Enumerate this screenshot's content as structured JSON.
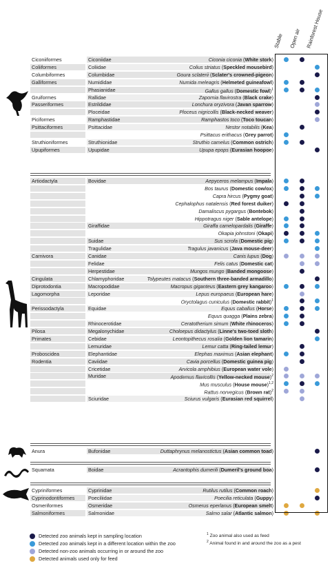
{
  "columns": [
    "Stable",
    "Open air",
    "Rainforest House"
  ],
  "colors": {
    "D": "#1a1a4a",
    "B": "#3a9ad9",
    "L": "#9fa7d8",
    "G": "#dfa840"
  },
  "groups": [
    {
      "name": "birds",
      "silhouette": "bird-silhouette-icon",
      "rows": [
        {
          "order": "Ciconiiformes",
          "family": "Ciconiidae",
          "latin": "Ciconia ciconia",
          "common": "White stork",
          "note": "",
          "dots": [
            "B",
            "D",
            ""
          ]
        },
        {
          "order": "Coliiformes",
          "family": "Coliidae",
          "latin": "Colius striatus",
          "common": "Speckled mousebird",
          "note": "",
          "dots": [
            "",
            "",
            "B"
          ]
        },
        {
          "order": "Columbiformes",
          "family": "Columbidae",
          "latin": "Goura sclaterii",
          "common": "Sclater's crowned-pigeon",
          "note": "",
          "dots": [
            "",
            "",
            "D"
          ]
        },
        {
          "order": "Galliformes",
          "family": "Numididae",
          "latin": "Numida meleagris",
          "common": "Helmeted guineafowl",
          "note": "",
          "dots": [
            "B",
            "D",
            ""
          ]
        },
        {
          "order": "",
          "family": "Phasianidae",
          "latin": "Gallus gallus",
          "common": "Domestic fowl",
          "note": "1",
          "dots": [
            "B",
            "D",
            "B"
          ]
        },
        {
          "order": "Gruiformes",
          "family": "Rallidae",
          "latin": "Zapornia flavirostra",
          "common": "Black crake",
          "note": "",
          "dots": [
            "",
            "",
            "D"
          ]
        },
        {
          "order": "Passeriformes",
          "family": "Estrildidae",
          "latin": "Lonchura oryzivora",
          "common": "Javan sparrow",
          "note": "",
          "dots": [
            "",
            "",
            "L"
          ]
        },
        {
          "order": "",
          "family": "Ploceidae",
          "latin": "Ploceus nigricollis",
          "common": "Black-necked weaver",
          "note": "",
          "dots": [
            "",
            "",
            "D"
          ]
        },
        {
          "order": "Piciformes",
          "family": "Ramphastidae",
          "latin": "Ramphastos toco",
          "common": "Toco toucan",
          "note": "",
          "dots": [
            "",
            "",
            "L"
          ]
        },
        {
          "order": "Psittaciformes",
          "family": "Psittacidae",
          "latin": "Nestor notabilis",
          "common": "Kea",
          "note": "",
          "dots": [
            "",
            "D",
            ""
          ]
        },
        {
          "order": "",
          "family": "",
          "latin": "Psittacus erithacus",
          "common": "Grey parrot",
          "note": "",
          "dots": [
            "B",
            "",
            ""
          ]
        },
        {
          "order": "Struthioniformes",
          "family": "Struthionidae",
          "latin": "Struthio camelus",
          "common": "Common ostrich",
          "note": "",
          "dots": [
            "B",
            "D",
            ""
          ]
        },
        {
          "order": "Upupiformes",
          "family": "Upupidae",
          "latin": "Upupa epops",
          "common": "Eurasian hoopoe",
          "note": "",
          "dots": [
            "",
            "",
            "D"
          ]
        }
      ]
    },
    {
      "name": "mammals",
      "silhouette": "giraffe-silhouette-icon",
      "rows": [
        {
          "order": "Artiodactyla",
          "family": "Bovidae",
          "latin": "Aepyceros melampus",
          "common": "Impala",
          "note": "",
          "dots": [
            "B",
            "D",
            ""
          ]
        },
        {
          "order": "",
          "family": "",
          "latin": "Bos taurus",
          "common": "Domestic cow/ox",
          "note": "",
          "dots": [
            "B",
            "D",
            "B"
          ]
        },
        {
          "order": "",
          "family": "",
          "latin": "Capra hircus",
          "common": "Pygmy goat",
          "note": "",
          "dots": [
            "",
            "D",
            "B"
          ]
        },
        {
          "order": "",
          "family": "",
          "latin": "Cephalophus natalensis",
          "common": "Red forest duiker",
          "note": "",
          "dots": [
            "D",
            "D",
            ""
          ]
        },
        {
          "order": "",
          "family": "",
          "latin": "Damaliscus pygargus",
          "common": "Bontebok",
          "note": "",
          "dots": [
            "",
            "D",
            ""
          ]
        },
        {
          "order": "",
          "family": "",
          "latin": "Hippotragus niger",
          "common": "Sable antelope",
          "note": "",
          "dots": [
            "B",
            "D",
            ""
          ]
        },
        {
          "order": "",
          "family": "Giraffidae",
          "latin": "Giraffa camelopardalis",
          "common": "Giraffe",
          "note": "",
          "dots": [
            "B",
            "D",
            ""
          ]
        },
        {
          "order": "",
          "family": "",
          "latin": "Okapia johnstoni",
          "common": "Okapi",
          "note": "",
          "dots": [
            "D",
            "D",
            "B"
          ]
        },
        {
          "order": "",
          "family": "Suidae",
          "latin": "Sus scrofa",
          "common": "Domestic pig",
          "note": "",
          "dots": [
            "B",
            "D",
            "B"
          ]
        },
        {
          "order": "",
          "family": "Tragulidae",
          "latin": "Tragulus javanicus",
          "common": "Java mouse-deer",
          "note": "",
          "dots": [
            "",
            "",
            "B"
          ]
        },
        {
          "order": "Carnivora",
          "family": "Canidae",
          "latin": "Canis lupus",
          "common": "Dog",
          "note": "",
          "dots": [
            "L",
            "L",
            "L"
          ]
        },
        {
          "order": "",
          "family": "Felidae",
          "latin": "Felis catus",
          "common": "Domestic cat",
          "note": "",
          "dots": [
            "",
            "L",
            "L"
          ]
        },
        {
          "order": "",
          "family": "Herpestidae",
          "latin": "Mungos mungo",
          "common": "Banded mongoose",
          "note": "",
          "dots": [
            "",
            "D",
            ""
          ]
        },
        {
          "order": "Cingulata",
          "family": "Chlamyphoridae",
          "latin": "Tolypeutes matacus",
          "common": "Southern three-banded armadillo",
          "note": "",
          "dots": [
            "",
            "",
            "D"
          ]
        },
        {
          "order": "Diprotodontia",
          "family": "Macropodidae",
          "latin": "Macropus giganteus",
          "common": "Eastern grey kangaroo",
          "note": "",
          "dots": [
            "B",
            "D",
            "B"
          ]
        },
        {
          "order": "Lagomorpha",
          "family": "Leporidae",
          "latin": "Lepus europaeus",
          "common": "European hare",
          "note": "",
          "dots": [
            "",
            "L",
            ""
          ]
        },
        {
          "order": "",
          "family": "",
          "latin": "Oryctolagus cuniculus",
          "common": "Domestic rabbit",
          "note": "1",
          "dots": [
            "",
            "D",
            "B"
          ]
        },
        {
          "order": "Perissodactyla",
          "family": "Equidae",
          "latin": "Equus caballus",
          "common": "Horse",
          "note": "",
          "dots": [
            "B",
            "D",
            "B"
          ]
        },
        {
          "order": "",
          "family": "",
          "latin": "Equus quagga",
          "common": "Plains zebra",
          "note": "",
          "dots": [
            "B",
            "D",
            ""
          ]
        },
        {
          "order": "",
          "family": "Rhinocerotidae",
          "latin": "Ceratotherium simum",
          "common": "White rhinoceros",
          "note": "",
          "dots": [
            "B",
            "D",
            ""
          ]
        },
        {
          "order": "Pilosa",
          "family": "Megalonychidae",
          "latin": "Choloepus didactylus",
          "common": "Linne's two-toed sloth",
          "note": "",
          "dots": [
            "",
            "",
            "D"
          ]
        },
        {
          "order": "Primates",
          "family": "Cebidae",
          "latin": "Leontopithecus rosalia",
          "common": "Golden lion tamarin",
          "note": "",
          "dots": [
            "",
            "",
            "B"
          ]
        },
        {
          "order": "",
          "family": "Lemuridae",
          "latin": "Lemur catta",
          "common": "Ring-tailed lemur",
          "note": "",
          "dots": [
            "",
            "D",
            ""
          ]
        },
        {
          "order": "Proboscidea",
          "family": "Elephantidae",
          "latin": "Elephas maximus",
          "common": "Asian elephant",
          "note": "",
          "dots": [
            "B",
            "D",
            ""
          ]
        },
        {
          "order": "Rodentia",
          "family": "Caviidae",
          "latin": "Cavia porcellus",
          "common": "Domestic guinea pig",
          "note": "",
          "dots": [
            "",
            "D",
            ""
          ]
        },
        {
          "order": "",
          "family": "Cricetidae",
          "latin": "Arvicola amphibius",
          "common": "European water vole",
          "note": "",
          "dots": [
            "L",
            "",
            ""
          ]
        },
        {
          "order": "",
          "family": "Muridae",
          "latin": "Apodemus flavicollis",
          "common": "Yellow-necked mouse",
          "note": "2",
          "dots": [
            "L",
            "L",
            "L"
          ]
        },
        {
          "order": "",
          "family": "",
          "latin": "Mus musculus",
          "common": "House mouse",
          "note": "1,2",
          "dots": [
            "B",
            "D",
            "B"
          ]
        },
        {
          "order": "",
          "family": "",
          "latin": "Rattus norvegicus",
          "common": "Brown rat",
          "note": "2",
          "dots": [
            "L",
            "L",
            ""
          ]
        },
        {
          "order": "",
          "family": "Sciuridae",
          "latin": "Sciurus vulgaris",
          "common": "Eurasian red squirrel",
          "note": "",
          "dots": [
            "",
            "L",
            ""
          ]
        }
      ]
    },
    {
      "name": "amphibians",
      "silhouette": "frog-silhouette-icon",
      "rows": [
        {
          "order": "Anura",
          "family": "Bufonidae",
          "latin": "Duttaphrynus melanostictus",
          "common": "Asian common toad",
          "note": "",
          "dots": [
            "",
            "",
            "D"
          ]
        }
      ]
    },
    {
      "name": "reptiles",
      "silhouette": "snake-silhouette-icon",
      "rows": [
        {
          "order": "Squamata",
          "family": "Boidae",
          "latin": "Acrantophis dumerili",
          "common": "Dumeril's ground boa",
          "note": "",
          "dots": [
            "",
            "",
            "D"
          ]
        }
      ]
    },
    {
      "name": "fish",
      "silhouette": "fish-silhouette-icon",
      "rows": [
        {
          "order": "Cypriniformes",
          "family": "Cyprinidae",
          "latin": "Rutilus rutilus",
          "common": "Common roach",
          "note": "",
          "dots": [
            "",
            "",
            "G"
          ]
        },
        {
          "order": "Cyprinodontiformes",
          "family": "Poeciliidae",
          "latin": "Poecilia reticulata",
          "common": "Guppy",
          "note": "",
          "dots": [
            "",
            "",
            "D"
          ]
        },
        {
          "order": "Osmeriformes",
          "family": "Osmeridae",
          "latin": "Osmerus eperlanus",
          "common": "European smelt",
          "note": "",
          "dots": [
            "G",
            "G",
            ""
          ]
        },
        {
          "order": "Salmoniformes",
          "family": "Salmonidae",
          "latin": "Salmo salar",
          "common": "Atlantic salmon",
          "note": "",
          "dots": [
            "G",
            "",
            "G"
          ]
        }
      ]
    }
  ],
  "legend": [
    {
      "color": "D",
      "label": "Detected zoo animals kept in sampling location"
    },
    {
      "color": "B",
      "label": "Detected zoo animals kept in a different location within the zoo"
    },
    {
      "color": "L",
      "label": "Detected non-zoo animals occurring in or around the zoo"
    },
    {
      "color": "G",
      "label": "Detected animals used only for feed"
    }
  ],
  "footnotes": [
    {
      "mark": "1",
      "text": "Zoo animal also used as feed"
    },
    {
      "mark": "2",
      "text": "Animal found in and around the zoo as a pest"
    }
  ]
}
